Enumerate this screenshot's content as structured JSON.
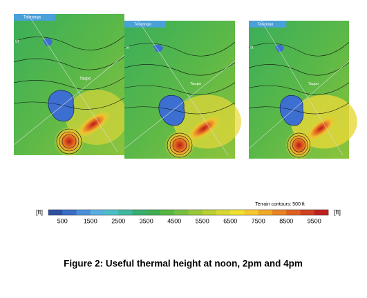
{
  "maps": [
    {
      "labels": [
        "Tauranga",
        "Taupo",
        "ot"
      ]
    },
    {
      "labels": [
        "Tauranga",
        "Taupo",
        "ot"
      ]
    },
    {
      "labels": [
        "Tauranga",
        "Taupo",
        "ot"
      ]
    }
  ],
  "note": "Terrain contours: 500 ft",
  "colorbar": {
    "unit": "[ft]",
    "ticks": [
      500,
      1500,
      2500,
      3500,
      4500,
      5500,
      6500,
      7500,
      8500,
      9500
    ],
    "colors": [
      "#2f4fa3",
      "#3a6cc6",
      "#4a8fd8",
      "#58aee0",
      "#4cbfc6",
      "#3fb8a0",
      "#37ae72",
      "#3fae52",
      "#56b842",
      "#76c040",
      "#98c838",
      "#b8d030",
      "#d8d832",
      "#f0e030",
      "#f6c830",
      "#f0a828",
      "#e88222",
      "#de6020",
      "#cf4020",
      "#be2020"
    ]
  },
  "caption": "Figure 2: Useful thermal height at noon, 2pm and 4pm"
}
